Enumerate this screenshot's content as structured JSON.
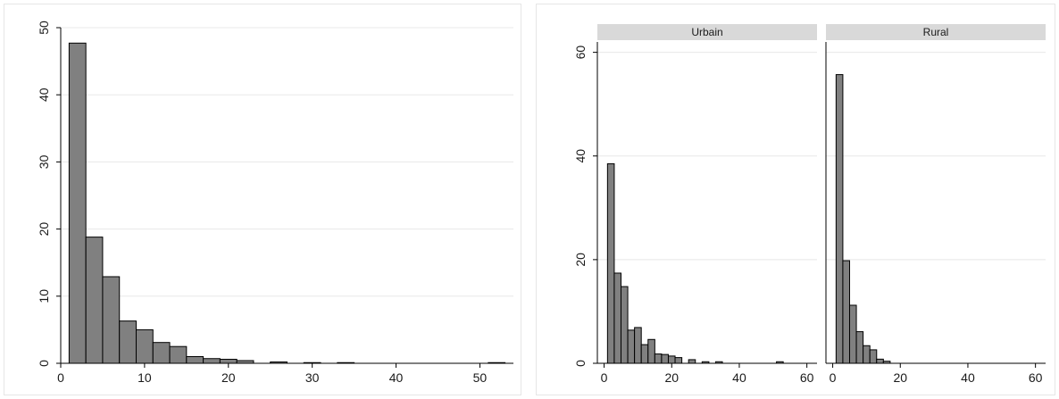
{
  "chart_data": [
    {
      "type": "bar",
      "title": "",
      "xlabel": "",
      "ylabel": "",
      "xlim": [
        0,
        54
      ],
      "ylim": [
        0,
        50
      ],
      "xticks": [
        0,
        10,
        20,
        30,
        40,
        50
      ],
      "yticks": [
        0,
        10,
        20,
        30,
        40,
        50
      ],
      "bin_width": 2,
      "bin_starts": [
        1,
        3,
        5,
        7,
        9,
        11,
        13,
        15,
        17,
        19,
        21,
        23,
        25,
        27,
        29,
        31,
        33,
        35,
        37,
        39,
        41,
        43,
        45,
        47,
        49,
        51
      ],
      "values": [
        47.7,
        18.8,
        12.9,
        6.3,
        5.0,
        3.1,
        2.5,
        1.0,
        0.7,
        0.6,
        0.4,
        0,
        0.2,
        0,
        0.1,
        0,
        0.1,
        0,
        0,
        0,
        0,
        0,
        0,
        0,
        0,
        0.1
      ],
      "grid": true,
      "bar_color": "#808080",
      "edge_color": "#000000"
    },
    {
      "type": "bar",
      "facets": [
        "Urbain",
        "Rural"
      ],
      "title": "",
      "xlabel": "",
      "ylabel": "",
      "xlim": [
        -2,
        63
      ],
      "ylim": [
        0,
        62
      ],
      "xticks": [
        0,
        20,
        40,
        60
      ],
      "yticks": [
        0,
        20,
        40,
        60
      ],
      "bin_width": 2,
      "bin_starts": [
        1,
        3,
        5,
        7,
        9,
        11,
        13,
        15,
        17,
        19,
        21,
        23,
        25,
        27,
        29,
        31,
        33,
        35,
        37,
        39,
        41,
        43,
        45,
        47,
        49,
        51
      ],
      "series": [
        {
          "name": "Urbain",
          "values": [
            38.5,
            17.4,
            14.8,
            6.4,
            6.9,
            3.6,
            4.6,
            1.8,
            1.7,
            1.4,
            1.1,
            0,
            0.7,
            0,
            0.3,
            0,
            0.3,
            0,
            0,
            0,
            0,
            0,
            0,
            0,
            0,
            0.3
          ]
        },
        {
          "name": "Rural",
          "values": [
            55.7,
            19.8,
            11.2,
            6.1,
            3.4,
            2.6,
            0.8,
            0.4,
            0,
            0,
            0,
            0,
            0,
            0,
            0,
            0,
            0,
            0,
            0,
            0,
            0,
            0,
            0,
            0,
            0,
            0
          ]
        }
      ],
      "grid": true,
      "strip_color": "#d9d9d9",
      "bar_color": "#808080",
      "edge_color": "#000000"
    }
  ]
}
